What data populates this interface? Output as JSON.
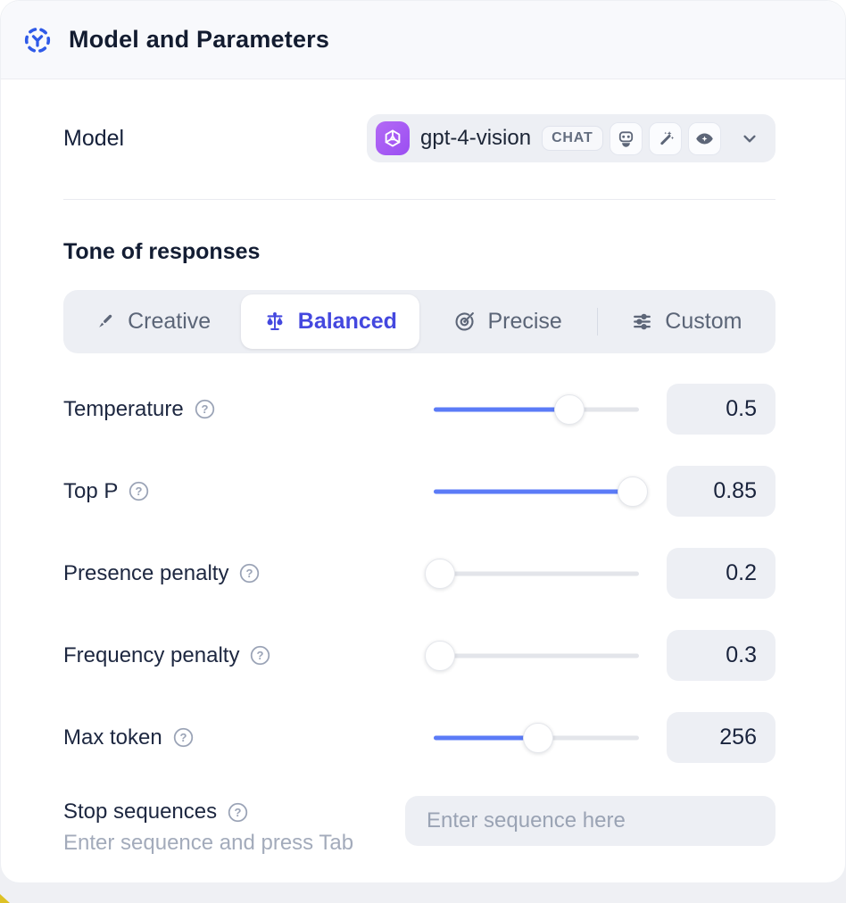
{
  "header": {
    "title": "Model and Parameters"
  },
  "model": {
    "label": "Model",
    "selected_model": "gpt-4-vision",
    "type_badge": "CHAT",
    "capabilities": [
      "robot",
      "magic-wand",
      "vision"
    ],
    "logo_color": "#a55bf4"
  },
  "tone": {
    "heading": "Tone of responses",
    "selected_color": "#4448df",
    "options": [
      {
        "label": "Creative",
        "icon": "paintbrush-icon",
        "selected": false
      },
      {
        "label": "Balanced",
        "icon": "balance-scale-icon",
        "selected": true
      },
      {
        "label": "Precise",
        "icon": "target-icon",
        "selected": false
      },
      {
        "label": "Custom",
        "icon": "sliders-icon",
        "selected": false
      }
    ]
  },
  "parameters": {
    "slider_color": "#5b7bf7",
    "rows": [
      {
        "label": "Temperature",
        "value": "0.5",
        "percent": 66
      },
      {
        "label": "Top P",
        "value": "0.85",
        "percent": 97
      },
      {
        "label": "Presence penalty",
        "value": "0.2",
        "percent": 3
      },
      {
        "label": "Frequency penalty",
        "value": "0.3",
        "percent": 3
      },
      {
        "label": "Max token",
        "value": "256",
        "percent": 51
      }
    ]
  },
  "stop_sequences": {
    "label": "Stop sequences",
    "hint": "Enter sequence and press Tab",
    "placeholder": "Enter sequence here"
  }
}
